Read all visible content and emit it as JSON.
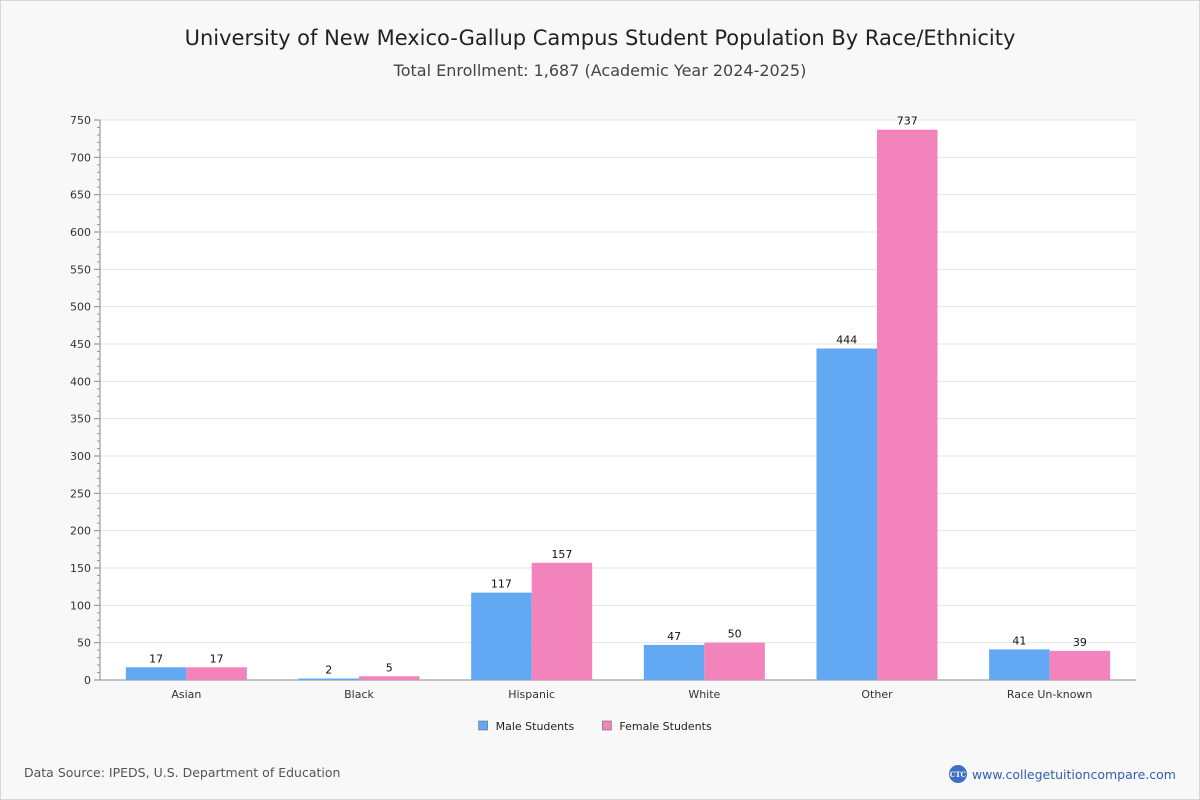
{
  "chart_data": {
    "type": "bar",
    "title": "University of New Mexico-Gallup Campus Student Population By Race/Ethnicity",
    "subtitle": "Total Enrollment: 1,687 (Academic Year 2024-2025)",
    "xlabel": "",
    "ylabel": "",
    "ylim": [
      0,
      750
    ],
    "yticks": [
      0,
      50,
      100,
      150,
      200,
      250,
      300,
      350,
      400,
      450,
      500,
      550,
      600,
      650,
      700,
      750
    ],
    "grid": true,
    "legend_position": "bottom-center",
    "categories": [
      "Asian",
      "Black",
      "Hispanic",
      "White",
      "Other",
      "Race Un-known"
    ],
    "series": [
      {
        "name": "Male Students",
        "color": "#62a8f2",
        "values": [
          17,
          2,
          117,
          47,
          444,
          41
        ]
      },
      {
        "name": "Female Students",
        "color": "#f283bb",
        "values": [
          17,
          5,
          157,
          50,
          737,
          39
        ]
      }
    ]
  },
  "footer": {
    "source": "Data Source: IPEDS, U.S. Department of Education",
    "site": "www.collegetuitioncompare.com",
    "logo_text": "CTC"
  }
}
